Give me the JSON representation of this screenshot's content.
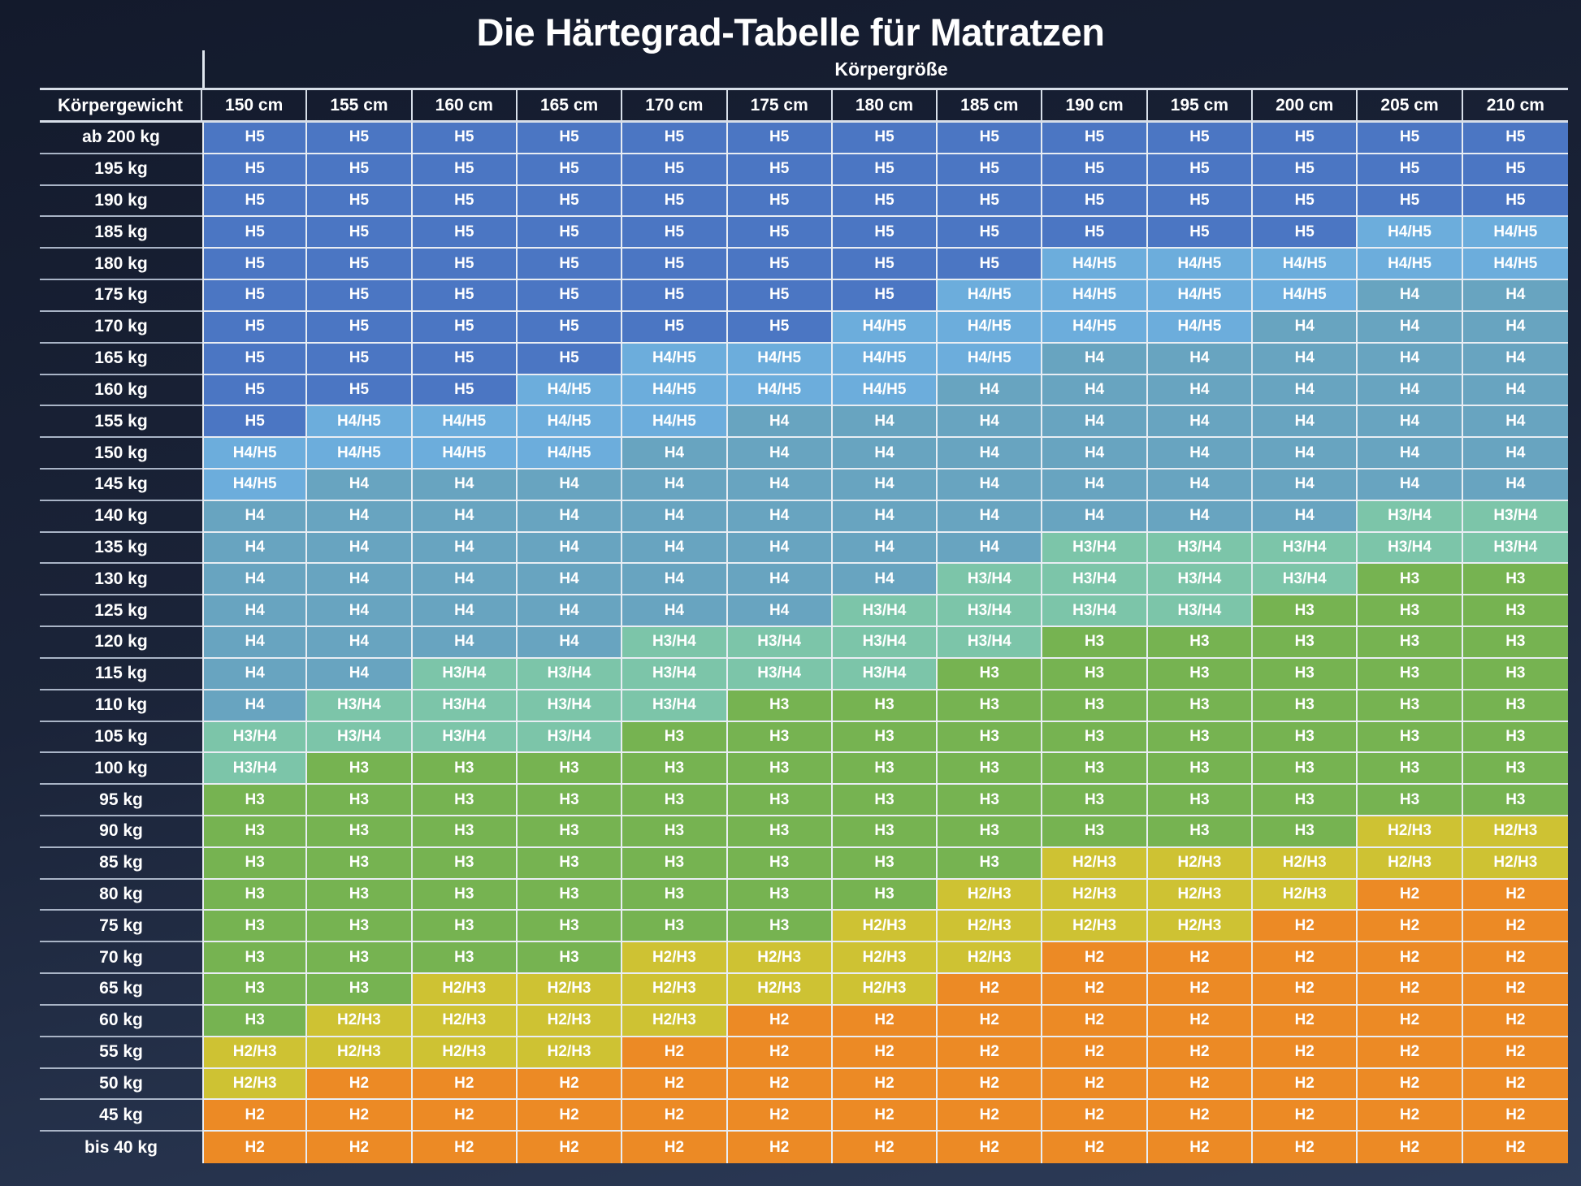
{
  "title": "Die Härtegrad-Tabelle für Matratzen",
  "chart_data": {
    "type": "heatmap",
    "title": "Die Härtegrad-Tabelle für Matratzen",
    "x_group_label": "Körpergröße",
    "y_group_label": "Körpergewicht",
    "x_categories": [
      "150 cm",
      "155 cm",
      "160 cm",
      "165 cm",
      "170 cm",
      "175 cm",
      "180 cm",
      "185 cm",
      "190 cm",
      "195 cm",
      "200 cm",
      "205 cm",
      "210 cm"
    ],
    "y_categories": [
      "ab 200 kg",
      "195 kg",
      "190 kg",
      "185 kg",
      "180 kg",
      "175 kg",
      "170 kg",
      "165 kg",
      "160 kg",
      "155 kg",
      "150 kg",
      "145 kg",
      "140 kg",
      "135 kg",
      "130 kg",
      "125 kg",
      "120 kg",
      "115 kg",
      "110 kg",
      "105 kg",
      "100 kg",
      "95 kg",
      "90 kg",
      "85 kg",
      "80 kg",
      "75 kg",
      "70 kg",
      "65 kg",
      "60 kg",
      "55 kg",
      "50 kg",
      "45 kg",
      "bis 40 kg"
    ],
    "values": [
      [
        "H5",
        "H5",
        "H5",
        "H5",
        "H5",
        "H5",
        "H5",
        "H5",
        "H5",
        "H5",
        "H5",
        "H5",
        "H5"
      ],
      [
        "H5",
        "H5",
        "H5",
        "H5",
        "H5",
        "H5",
        "H5",
        "H5",
        "H5",
        "H5",
        "H5",
        "H5",
        "H5"
      ],
      [
        "H5",
        "H5",
        "H5",
        "H5",
        "H5",
        "H5",
        "H5",
        "H5",
        "H5",
        "H5",
        "H5",
        "H5",
        "H5"
      ],
      [
        "H5",
        "H5",
        "H5",
        "H5",
        "H5",
        "H5",
        "H5",
        "H5",
        "H5",
        "H5",
        "H5",
        "H4/H5",
        "H4/H5"
      ],
      [
        "H5",
        "H5",
        "H5",
        "H5",
        "H5",
        "H5",
        "H5",
        "H5",
        "H4/H5",
        "H4/H5",
        "H4/H5",
        "H4/H5",
        "H4/H5"
      ],
      [
        "H5",
        "H5",
        "H5",
        "H5",
        "H5",
        "H5",
        "H5",
        "H4/H5",
        "H4/H5",
        "H4/H5",
        "H4/H5",
        "H4",
        "H4"
      ],
      [
        "H5",
        "H5",
        "H5",
        "H5",
        "H5",
        "H5",
        "H4/H5",
        "H4/H5",
        "H4/H5",
        "H4/H5",
        "H4",
        "H4",
        "H4"
      ],
      [
        "H5",
        "H5",
        "H5",
        "H5",
        "H4/H5",
        "H4/H5",
        "H4/H5",
        "H4/H5",
        "H4",
        "H4",
        "H4",
        "H4",
        "H4"
      ],
      [
        "H5",
        "H5",
        "H5",
        "H4/H5",
        "H4/H5",
        "H4/H5",
        "H4/H5",
        "H4",
        "H4",
        "H4",
        "H4",
        "H4",
        "H4"
      ],
      [
        "H5",
        "H4/H5",
        "H4/H5",
        "H4/H5",
        "H4/H5",
        "H4",
        "H4",
        "H4",
        "H4",
        "H4",
        "H4",
        "H4",
        "H4"
      ],
      [
        "H4/H5",
        "H4/H5",
        "H4/H5",
        "H4/H5",
        "H4",
        "H4",
        "H4",
        "H4",
        "H4",
        "H4",
        "H4",
        "H4",
        "H4"
      ],
      [
        "H4/H5",
        "H4",
        "H4",
        "H4",
        "H4",
        "H4",
        "H4",
        "H4",
        "H4",
        "H4",
        "H4",
        "H4",
        "H4"
      ],
      [
        "H4",
        "H4",
        "H4",
        "H4",
        "H4",
        "H4",
        "H4",
        "H4",
        "H4",
        "H4",
        "H4",
        "H3/H4",
        "H3/H4"
      ],
      [
        "H4",
        "H4",
        "H4",
        "H4",
        "H4",
        "H4",
        "H4",
        "H4",
        "H3/H4",
        "H3/H4",
        "H3/H4",
        "H3/H4",
        "H3/H4"
      ],
      [
        "H4",
        "H4",
        "H4",
        "H4",
        "H4",
        "H4",
        "H4",
        "H3/H4",
        "H3/H4",
        "H3/H4",
        "H3/H4",
        "H3",
        "H3"
      ],
      [
        "H4",
        "H4",
        "H4",
        "H4",
        "H4",
        "H4",
        "H3/H4",
        "H3/H4",
        "H3/H4",
        "H3/H4",
        "H3",
        "H3",
        "H3"
      ],
      [
        "H4",
        "H4",
        "H4",
        "H4",
        "H3/H4",
        "H3/H4",
        "H3/H4",
        "H3/H4",
        "H3",
        "H3",
        "H3",
        "H3",
        "H3"
      ],
      [
        "H4",
        "H4",
        "H3/H4",
        "H3/H4",
        "H3/H4",
        "H3/H4",
        "H3/H4",
        "H3",
        "H3",
        "H3",
        "H3",
        "H3",
        "H3"
      ],
      [
        "H4",
        "H3/H4",
        "H3/H4",
        "H3/H4",
        "H3/H4",
        "H3",
        "H3",
        "H3",
        "H3",
        "H3",
        "H3",
        "H3",
        "H3"
      ],
      [
        "H3/H4",
        "H3/H4",
        "H3/H4",
        "H3/H4",
        "H3",
        "H3",
        "H3",
        "H3",
        "H3",
        "H3",
        "H3",
        "H3",
        "H3"
      ],
      [
        "H3/H4",
        "H3",
        "H3",
        "H3",
        "H3",
        "H3",
        "H3",
        "H3",
        "H3",
        "H3",
        "H3",
        "H3",
        "H3"
      ],
      [
        "H3",
        "H3",
        "H3",
        "H3",
        "H3",
        "H3",
        "H3",
        "H3",
        "H3",
        "H3",
        "H3",
        "H3",
        "H3"
      ],
      [
        "H3",
        "H3",
        "H3",
        "H3",
        "H3",
        "H3",
        "H3",
        "H3",
        "H3",
        "H3",
        "H3",
        "H2/H3",
        "H2/H3"
      ],
      [
        "H3",
        "H3",
        "H3",
        "H3",
        "H3",
        "H3",
        "H3",
        "H3",
        "H2/H3",
        "H2/H3",
        "H2/H3",
        "H2/H3",
        "H2/H3"
      ],
      [
        "H3",
        "H3",
        "H3",
        "H3",
        "H3",
        "H3",
        "H3",
        "H2/H3",
        "H2/H3",
        "H2/H3",
        "H2/H3",
        "H2",
        "H2"
      ],
      [
        "H3",
        "H3",
        "H3",
        "H3",
        "H3",
        "H3",
        "H2/H3",
        "H2/H3",
        "H2/H3",
        "H2/H3",
        "H2",
        "H2",
        "H2"
      ],
      [
        "H3",
        "H3",
        "H3",
        "H3",
        "H2/H3",
        "H2/H3",
        "H2/H3",
        "H2/H3",
        "H2",
        "H2",
        "H2",
        "H2",
        "H2"
      ],
      [
        "H3",
        "H3",
        "H2/H3",
        "H2/H3",
        "H2/H3",
        "H2/H3",
        "H2/H3",
        "H2",
        "H2",
        "H2",
        "H2",
        "H2",
        "H2"
      ],
      [
        "H3",
        "H2/H3",
        "H2/H3",
        "H2/H3",
        "H2/H3",
        "H2",
        "H2",
        "H2",
        "H2",
        "H2",
        "H2",
        "H2",
        "H2"
      ],
      [
        "H2/H3",
        "H2/H3",
        "H2/H3",
        "H2/H3",
        "H2",
        "H2",
        "H2",
        "H2",
        "H2",
        "H2",
        "H2",
        "H2",
        "H2"
      ],
      [
        "H2/H3",
        "H2",
        "H2",
        "H2",
        "H2",
        "H2",
        "H2",
        "H2",
        "H2",
        "H2",
        "H2",
        "H2",
        "H2"
      ],
      [
        "H2",
        "H2",
        "H2",
        "H2",
        "H2",
        "H2",
        "H2",
        "H2",
        "H2",
        "H2",
        "H2",
        "H2",
        "H2"
      ],
      [
        "H2",
        "H2",
        "H2",
        "H2",
        "H2",
        "H2",
        "H2",
        "H2",
        "H2",
        "H2",
        "H2",
        "H2",
        "H2"
      ]
    ],
    "value_colors": {
      "H5": "#4b76c3",
      "H4/H5": "#6caddc",
      "H4": "#68a4c0",
      "H3/H4": "#7cc5a9",
      "H3": "#76b351",
      "H2/H3": "#cec233",
      "H2": "#ec8a25"
    },
    "text_color": "#ffffff",
    "background_top": "#131a2c",
    "background_bottom": "#2d3c59"
  }
}
